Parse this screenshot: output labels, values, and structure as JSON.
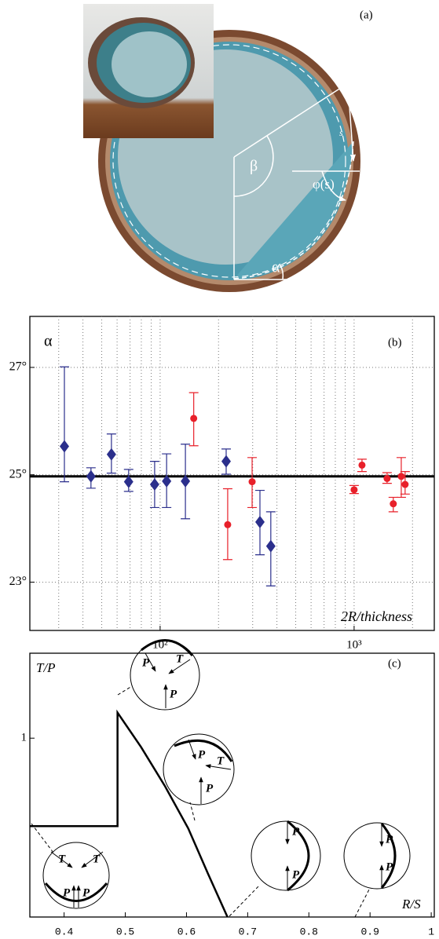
{
  "panel_a": {
    "label": "(a)",
    "annotations": [
      "β",
      "s",
      "φ(s)",
      "α"
    ]
  },
  "chart_data": [
    {
      "type": "scatter",
      "label": "(b)",
      "ylabel": "α",
      "xlabel": "2R/thickness",
      "xscale": "log",
      "xlim": [
        21.3,
        2590
      ],
      "ylim": [
        22.1,
        27.95
      ],
      "xticks": [
        {
          "value": 100,
          "label": "10²"
        },
        {
          "value": 1000,
          "label": "10³"
        }
      ],
      "yticks": [
        {
          "value": 23,
          "label": "23°"
        },
        {
          "value": 25,
          "label": "25°"
        },
        {
          "value": 27,
          "label": "27°"
        }
      ],
      "grid": true,
      "xgrid": [
        30,
        40,
        50,
        60,
        70,
        80,
        90,
        200,
        300,
        400,
        500,
        600,
        700,
        800,
        900,
        2000
      ],
      "hline": 24.97,
      "series": [
        {
          "color": "#2b2f8c",
          "marker": "diamond",
          "x": [
            32.1,
            44.0,
            56.1,
            68.8,
            93.7,
            108,
            135,
            219,
            327,
            372
          ],
          "values": [
            25.53,
            24.97,
            25.38,
            24.87,
            24.82,
            24.88,
            24.88,
            25.25,
            24.12,
            23.67
          ],
          "upper": [
            27.01,
            25.13,
            25.76,
            25.1,
            25.25,
            25.39,
            25.57,
            25.48,
            24.71,
            24.31
          ],
          "lower": [
            24.87,
            24.75,
            25.03,
            24.69,
            24.39,
            24.39,
            24.18,
            25.01,
            23.51,
            22.93
          ]
        },
        {
          "color": "#e8202a",
          "marker": "circle",
          "x": [
            149,
            223,
            298,
            1000,
            1098,
            1479,
            1592,
            1832,
            1750
          ],
          "values": [
            26.05,
            24.07,
            24.87,
            24.72,
            25.18,
            24.93,
            24.46,
            24.82,
            24.97
          ],
          "upper": [
            26.53,
            24.74,
            25.32,
            24.8,
            25.29,
            25.04,
            24.58,
            25.06,
            25.32
          ],
          "lower": [
            25.54,
            23.42,
            24.39,
            24.65,
            25.06,
            24.84,
            24.31,
            24.64,
            24.58
          ]
        }
      ]
    },
    {
      "type": "line",
      "label": "(c)",
      "ylabel": "T/P",
      "xlabel": "R/S",
      "color": "#000000",
      "xlim": [
        0.344,
        1.005
      ],
      "ylim": [
        0,
        1.475
      ],
      "xticks": [
        0.4,
        0.5,
        0.6,
        0.7,
        0.8,
        0.9,
        1
      ],
      "yticks": [
        1
      ],
      "x": [
        0.3435,
        0.4873,
        0.4873,
        0.5258,
        0.5643,
        0.6028,
        0.6349,
        0.667
      ],
      "values": [
        0.508,
        0.508,
        1.143,
        0.95,
        0.735,
        0.496,
        0.244,
        0
      ],
      "insets": [
        [
          "T",
          "T",
          "P",
          "P"
        ],
        [
          "P",
          "T",
          "P"
        ],
        [
          "P",
          "T",
          "P"
        ],
        [
          "P",
          "P"
        ],
        [
          "P",
          "P"
        ]
      ]
    }
  ]
}
